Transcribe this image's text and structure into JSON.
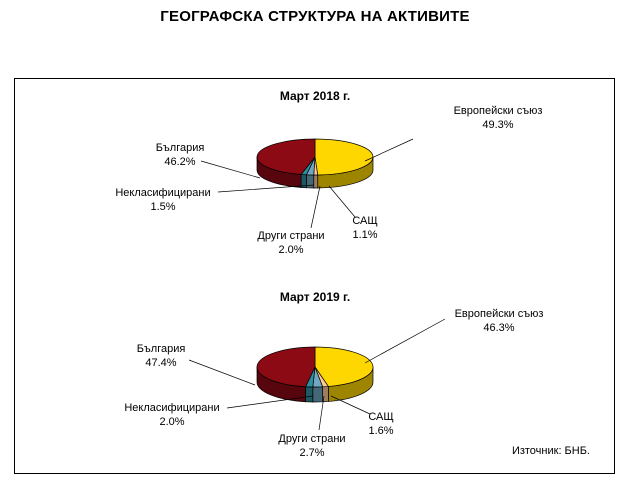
{
  "page_title": "ГЕОГРАФСКА СТРУКТУРА НА АКТИВИТЕ",
  "source": "Източник: БНБ.",
  "colors": {
    "eu": "#FFD700",
    "usa": "#FFC896",
    "other": "#6FA8C0",
    "unclassified": "#2E8FA0",
    "bulgaria": "#8B0A14"
  },
  "chart_data": [
    {
      "type": "pie",
      "title": "Март 2018 г.",
      "slices": [
        {
          "name": "Европейски съюз",
          "value": 49.3,
          "label": "49.3%"
        },
        {
          "name": "САЩ",
          "value": 1.1,
          "label": "1.1%"
        },
        {
          "name": "Други страни",
          "value": 2.0,
          "label": "2.0%"
        },
        {
          "name": "Некласифицирани",
          "value": 1.5,
          "label": "1.5%"
        },
        {
          "name": "България",
          "value": 46.2,
          "label": "46.2%"
        }
      ]
    },
    {
      "type": "pie",
      "title": "Март 2019 г.",
      "slices": [
        {
          "name": "Европейски съюз",
          "value": 46.3,
          "label": "46.3%"
        },
        {
          "name": "САЩ",
          "value": 1.6,
          "label": "1.6%"
        },
        {
          "name": "Други страни",
          "value": 2.7,
          "label": "2.7%"
        },
        {
          "name": "Некласифицирани",
          "value": 2.0,
          "label": "2.0%"
        },
        {
          "name": "България",
          "value": 47.4,
          "label": "47.4%"
        }
      ]
    }
  ]
}
